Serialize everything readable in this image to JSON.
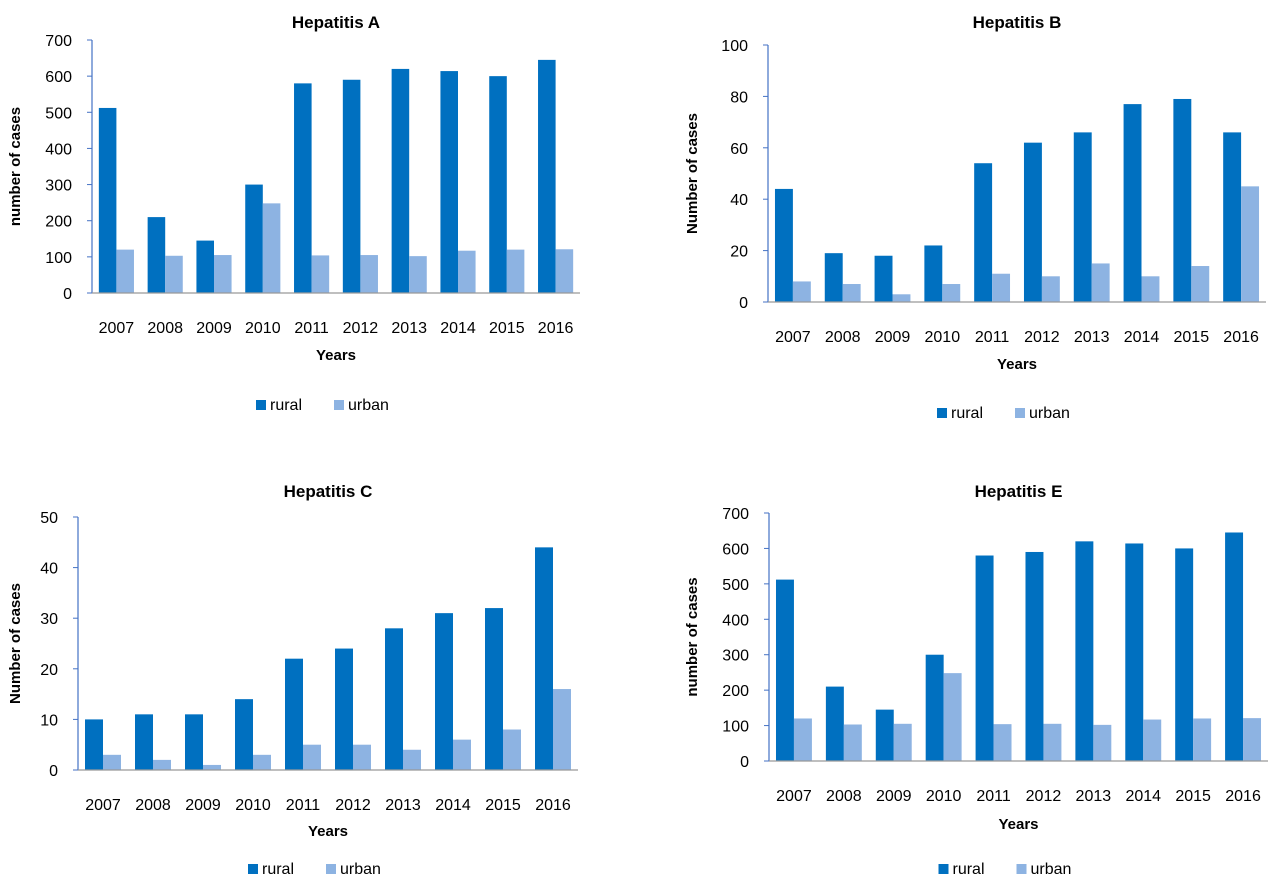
{
  "colors": {
    "rural": "#0070c0",
    "urban": "#8db3e2",
    "axis": "#4472c4"
  },
  "chart_data": [
    {
      "type": "bar",
      "title": "Hepatitis A",
      "xlabel": "Years",
      "ylabel": "number of cases",
      "ylim": [
        0,
        700
      ],
      "yticks": [
        0,
        100,
        200,
        300,
        400,
        500,
        600,
        700
      ],
      "categories": [
        "2007",
        "2008",
        "2009",
        "2010",
        "2011",
        "2012",
        "2013",
        "2014",
        "2015",
        "2016"
      ],
      "series": [
        {
          "name": "rural",
          "values": [
            512,
            210,
            145,
            300,
            580,
            590,
            620,
            614,
            600,
            645
          ]
        },
        {
          "name": "urban",
          "values": [
            120,
            103,
            105,
            248,
            104,
            105,
            102,
            117,
            120,
            121
          ]
        }
      ],
      "legend": "bottom"
    },
    {
      "type": "bar",
      "title": "Hepatitis B",
      "xlabel": "Years",
      "ylabel": "Number of cases",
      "ylim": [
        0,
        100
      ],
      "yticks": [
        0,
        20,
        40,
        60,
        80,
        100
      ],
      "categories": [
        "2007",
        "2008",
        "2009",
        "2010",
        "2011",
        "2012",
        "2013",
        "2014",
        "2015",
        "2016"
      ],
      "series": [
        {
          "name": "rural",
          "values": [
            44,
            19,
            18,
            22,
            54,
            62,
            66,
            77,
            79,
            66
          ]
        },
        {
          "name": "urban",
          "values": [
            8,
            7,
            3,
            7,
            11,
            10,
            15,
            10,
            14,
            45
          ]
        }
      ],
      "legend": "bottom"
    },
    {
      "type": "bar",
      "title": "Hepatitis C",
      "xlabel": "Years",
      "ylabel": "Number of cases",
      "ylim": [
        0,
        50
      ],
      "yticks": [
        0,
        10,
        20,
        30,
        40,
        50
      ],
      "categories": [
        "2007",
        "2008",
        "2009",
        "2010",
        "2011",
        "2012",
        "2013",
        "2014",
        "2015",
        "2016"
      ],
      "series": [
        {
          "name": "rural",
          "values": [
            10,
            11,
            11,
            14,
            22,
            24,
            28,
            31,
            32,
            44
          ]
        },
        {
          "name": "urban",
          "values": [
            3,
            2,
            1,
            3,
            5,
            5,
            4,
            6,
            8,
            16
          ]
        }
      ],
      "legend": "bottom"
    },
    {
      "type": "bar",
      "title": "Hepatitis E",
      "xlabel": "Years",
      "ylabel": "number of cases",
      "ylim": [
        0,
        700
      ],
      "yticks": [
        0,
        100,
        200,
        300,
        400,
        500,
        600,
        700
      ],
      "categories": [
        "2007",
        "2008",
        "2009",
        "2010",
        "2011",
        "2012",
        "2013",
        "2014",
        "2015",
        "2016"
      ],
      "series": [
        {
          "name": "rural",
          "values": [
            512,
            210,
            145,
            300,
            580,
            590,
            620,
            614,
            600,
            645
          ]
        },
        {
          "name": "urban",
          "values": [
            120,
            103,
            105,
            248,
            104,
            105,
            102,
            117,
            120,
            121
          ]
        }
      ],
      "legend": "bottom"
    }
  ]
}
